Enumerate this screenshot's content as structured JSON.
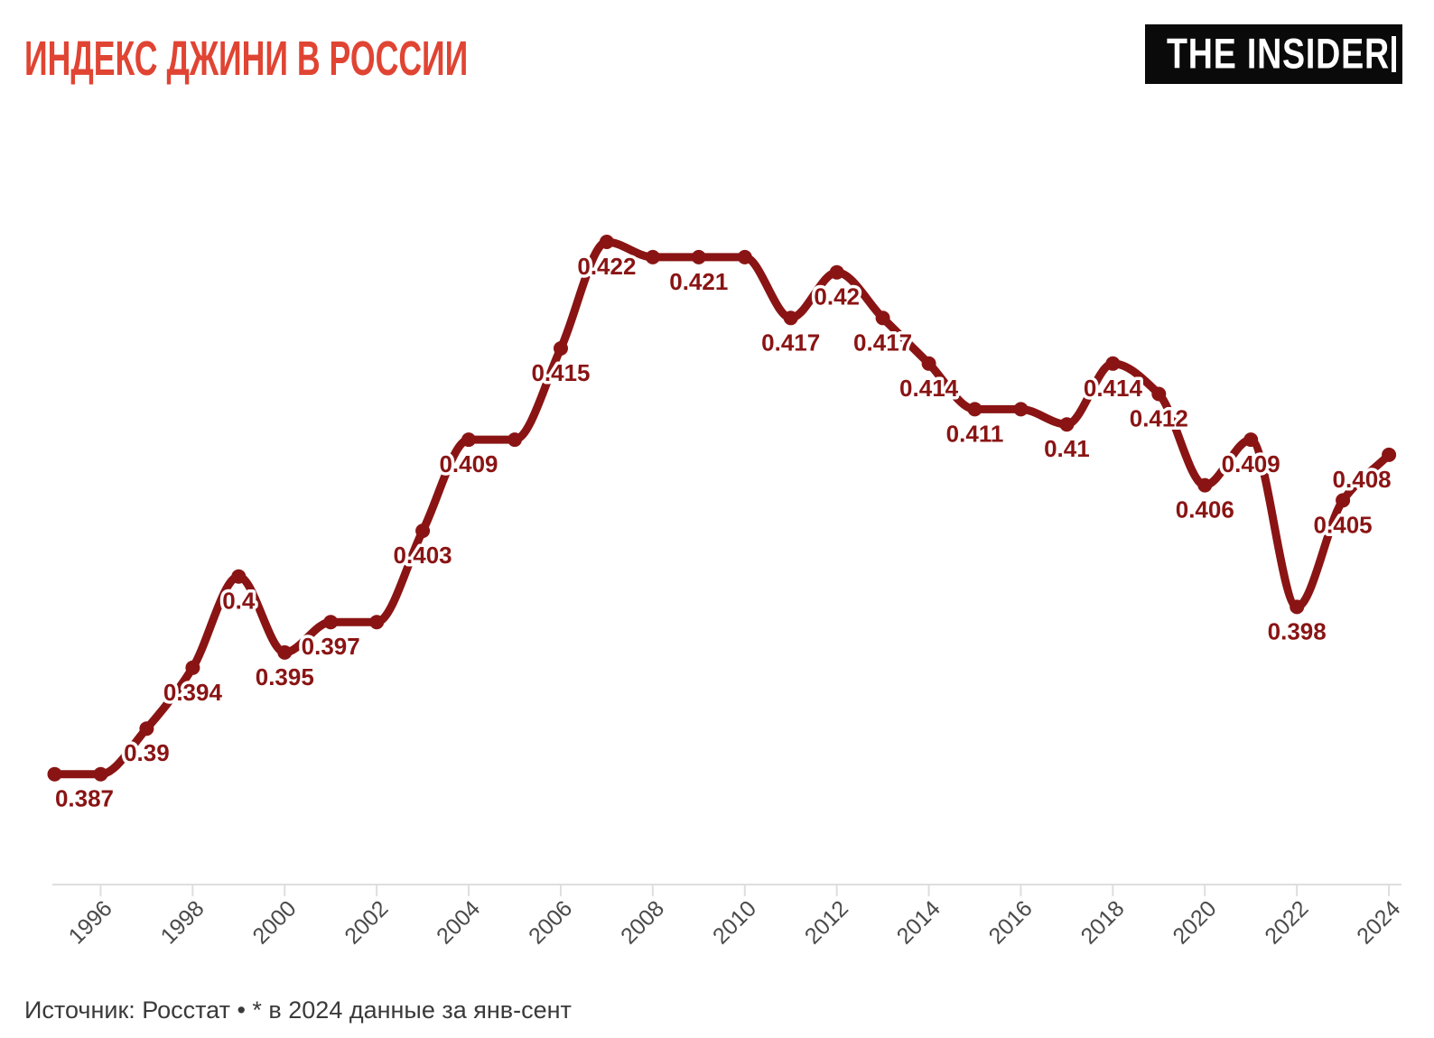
{
  "header": {
    "title": "ИНДЕКС ДЖИНИ В РОССИИ",
    "logo_text": "THE INSIDER"
  },
  "footer": {
    "source_note": "Источник: Росстат • * в 2024 данные за янв-сент"
  },
  "colors": {
    "line": "#8a1414",
    "title": "#e04433",
    "axis": "#dedede",
    "tick_label": "#4a4a4a",
    "logo_bg": "#0a0a0a",
    "logo_fg": "#ffffff",
    "source_text": "#3a3a3a",
    "bg": "#ffffff"
  },
  "chart_data": {
    "type": "line",
    "title": "ИНДЕКС ДЖИНИ В РОССИИ",
    "series_name": "Индекс Джини",
    "x": [
      1995,
      1996,
      1997,
      1998,
      1999,
      2000,
      2001,
      2002,
      2003,
      2004,
      2005,
      2006,
      2007,
      2008,
      2009,
      2010,
      2011,
      2012,
      2013,
      2014,
      2015,
      2016,
      2017,
      2018,
      2019,
      2020,
      2021,
      2022,
      2023,
      2024
    ],
    "values": [
      0.387,
      0.387,
      0.39,
      0.394,
      0.4,
      0.395,
      0.397,
      0.397,
      0.403,
      0.409,
      0.409,
      0.415,
      0.422,
      0.421,
      0.421,
      0.421,
      0.417,
      0.42,
      0.417,
      0.414,
      0.411,
      0.411,
      0.41,
      0.414,
      0.412,
      0.406,
      0.409,
      0.398,
      0.405,
      0.408
    ],
    "point_labels": [
      "0.387",
      null,
      "0.39",
      "0.394",
      "0.4",
      "0.395",
      "0.397",
      null,
      "0.403",
      "0.409",
      null,
      "0.415",
      "0.422",
      null,
      "0.421",
      null,
      "0.417",
      "0.42",
      "0.417",
      "0.414",
      "0.411",
      null,
      "0.41",
      "0.414",
      "0.412",
      "0.406",
      "0.409",
      "0.398",
      "0.405",
      "0.408"
    ],
    "label_dx": {
      "1995": 33,
      "2024": -30
    },
    "x_ticks": [
      1996,
      1998,
      2000,
      2002,
      2004,
      2006,
      2008,
      2010,
      2012,
      2014,
      2016,
      2018,
      2020,
      2022,
      2024
    ],
    "xlabel": "",
    "ylabel": "",
    "ylim": [
      0.3795,
      0.4245
    ],
    "grid": false,
    "legend": false,
    "marker": "circle",
    "line_color": "#8a1414",
    "label_halo": "#ffffff",
    "footnote": "* в 2024 данные за янв-сент"
  }
}
